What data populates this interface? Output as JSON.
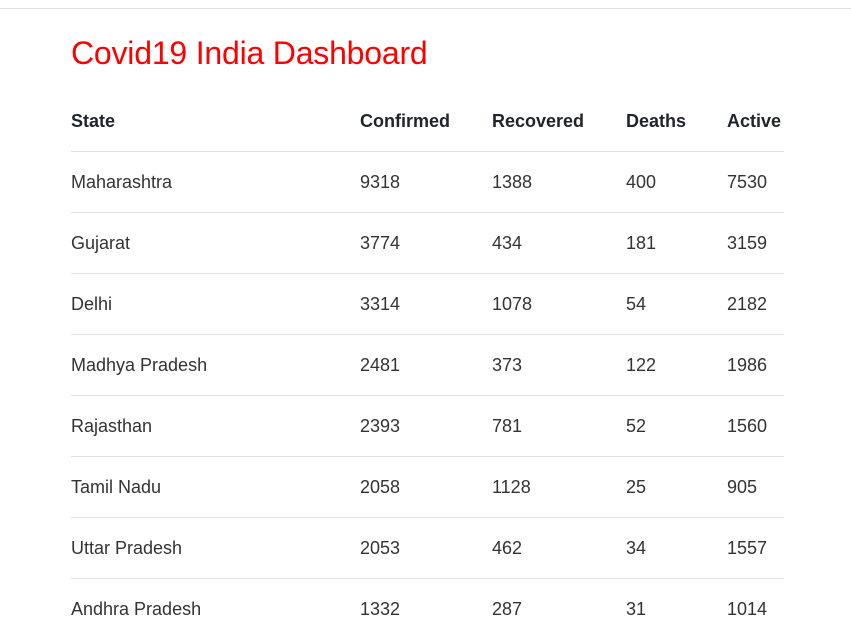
{
  "page": {
    "title": "Covid19 India Dashboard"
  },
  "table": {
    "headers": {
      "state": "State",
      "confirmed": "Confirmed",
      "recovered": "Recovered",
      "deaths": "Deaths",
      "active": "Active"
    },
    "rows": [
      {
        "state": "Maharashtra",
        "confirmed": "9318",
        "recovered": "1388",
        "deaths": "400",
        "active": "7530"
      },
      {
        "state": "Gujarat",
        "confirmed": "3774",
        "recovered": "434",
        "deaths": "181",
        "active": "3159"
      },
      {
        "state": "Delhi",
        "confirmed": "3314",
        "recovered": "1078",
        "deaths": "54",
        "active": "2182"
      },
      {
        "state": "Madhya Pradesh",
        "confirmed": "2481",
        "recovered": "373",
        "deaths": "122",
        "active": "1986"
      },
      {
        "state": "Rajasthan",
        "confirmed": "2393",
        "recovered": "781",
        "deaths": "52",
        "active": "1560"
      },
      {
        "state": "Tamil Nadu",
        "confirmed": "2058",
        "recovered": "1128",
        "deaths": "25",
        "active": "905"
      },
      {
        "state": "Uttar Pradesh",
        "confirmed": "2053",
        "recovered": "462",
        "deaths": "34",
        "active": "1557"
      },
      {
        "state": "Andhra Pradesh",
        "confirmed": "1332",
        "recovered": "287",
        "deaths": "31",
        "active": "1014"
      }
    ]
  },
  "colors": {
    "title": "#ff0000",
    "text": "#212529",
    "row_divider": "#dee2e6",
    "background": "#ffffff"
  }
}
